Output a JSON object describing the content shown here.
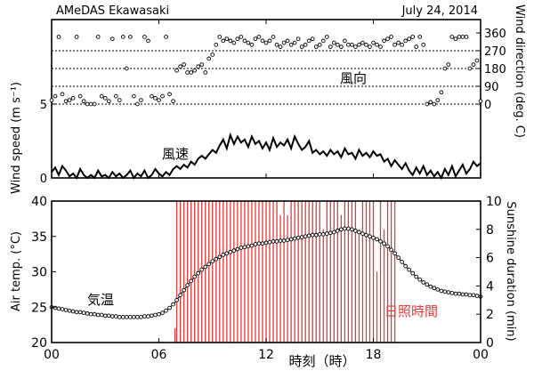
{
  "chart_data": [
    {
      "type": "scatter",
      "title": "AMeDAS Ekawasaki",
      "date": "July 24, 2014",
      "ylabel_right": "Wind direction (deg. C)",
      "y_ticks_right": [
        "360",
        "270",
        "180",
        "90",
        "0"
      ],
      "ylim": [
        0,
        360
      ],
      "grid_lines_at": [
        0,
        90,
        180,
        270
      ],
      "series_label": "風向",
      "series": [
        {
          "x": [
            0.0,
            0.2,
            0.4,
            0.6,
            0.8,
            1.0,
            1.2,
            1.4,
            1.6,
            1.8,
            2.0,
            2.2,
            2.4,
            2.6,
            2.8,
            3.0,
            3.2,
            3.4,
            3.6,
            3.8,
            4.0,
            4.2,
            4.4,
            4.6,
            4.8,
            5.0,
            5.2,
            5.4,
            5.6,
            5.8,
            6.0,
            6.2,
            6.4,
            6.6,
            6.8,
            7.0,
            7.2,
            7.4,
            7.6,
            7.8,
            8.0,
            8.2,
            8.4,
            8.6,
            8.8,
            9.0,
            9.2,
            9.4,
            9.6,
            9.8,
            10.0,
            10.2,
            10.4,
            10.6,
            10.8,
            11.0,
            11.2,
            11.4,
            11.6,
            11.8,
            12.0,
            12.2,
            12.4,
            12.6,
            12.8,
            13.0,
            13.2,
            13.4,
            13.6,
            13.8,
            14.0,
            14.2,
            14.4,
            14.6,
            14.8,
            15.0,
            15.2,
            15.4,
            15.6,
            15.8,
            16.0,
            16.2,
            16.4,
            16.6,
            16.8,
            17.0,
            17.2,
            17.4,
            17.6,
            17.8,
            18.0,
            18.2,
            18.4,
            18.6,
            18.8,
            19.0,
            19.2,
            19.4,
            19.6,
            19.8,
            20.0,
            20.2,
            20.4,
            20.6,
            20.8,
            21.0,
            21.2,
            21.4,
            21.6,
            21.8,
            22.0,
            22.2,
            22.4,
            22.6,
            22.8,
            23.0,
            23.2,
            23.4,
            23.6,
            23.8,
            24.0
          ],
          "y": [
            20,
            40,
            340,
            50,
            15,
            20,
            30,
            340,
            40,
            15,
            0,
            0,
            0,
            340,
            40,
            30,
            15,
            330,
            40,
            20,
            340,
            180,
            340,
            40,
            0,
            20,
            340,
            320,
            40,
            30,
            20,
            40,
            340,
            50,
            15,
            170,
            190,
            200,
            160,
            160,
            170,
            190,
            200,
            160,
            230,
            250,
            300,
            340,
            320,
            330,
            320,
            310,
            330,
            340,
            320,
            310,
            300,
            330,
            340,
            320,
            310,
            320,
            340,
            300,
            290,
            310,
            320,
            300,
            310,
            330,
            290,
            300,
            320,
            330,
            290,
            300,
            320,
            340,
            290,
            310,
            300,
            290,
            320,
            300,
            300,
            290,
            300,
            310,
            300,
            290,
            310,
            300,
            290,
            320,
            330,
            340,
            300,
            310,
            300,
            320,
            330,
            340,
            290,
            340,
            300,
            0,
            10,
            0,
            20,
            60,
            180,
            200,
            340,
            330,
            340,
            340,
            340,
            180,
            200,
            220,
            15
          ]
        }
      ]
    },
    {
      "type": "line",
      "ylabel": "Wind speed (m s⁻¹)",
      "y_ticks": [
        "5",
        "0"
      ],
      "ylim": [
        0,
        5
      ],
      "series_label": "風速",
      "series": [
        {
          "x": [
            0.0,
            0.2,
            0.4,
            0.6,
            0.8,
            1.0,
            1.2,
            1.4,
            1.6,
            1.8,
            2.0,
            2.2,
            2.4,
            2.6,
            2.8,
            3.0,
            3.2,
            3.4,
            3.6,
            3.8,
            4.0,
            4.2,
            4.4,
            4.6,
            4.8,
            5.0,
            5.2,
            5.4,
            5.6,
            5.8,
            6.0,
            6.2,
            6.4,
            6.6,
            6.8,
            7.0,
            7.2,
            7.4,
            7.6,
            7.8,
            8.0,
            8.2,
            8.4,
            8.6,
            8.8,
            9.0,
            9.2,
            9.4,
            9.6,
            9.8,
            10.0,
            10.2,
            10.4,
            10.6,
            10.8,
            11.0,
            11.2,
            11.4,
            11.6,
            11.8,
            12.0,
            12.2,
            12.4,
            12.6,
            12.8,
            13.0,
            13.2,
            13.4,
            13.6,
            13.8,
            14.0,
            14.2,
            14.4,
            14.6,
            14.8,
            15.0,
            15.2,
            15.4,
            15.6,
            15.8,
            16.0,
            16.2,
            16.4,
            16.6,
            16.8,
            17.0,
            17.2,
            17.4,
            17.6,
            17.8,
            18.0,
            18.2,
            18.4,
            18.6,
            18.8,
            19.0,
            19.2,
            19.4,
            19.6,
            19.8,
            20.0,
            20.2,
            20.4,
            20.6,
            20.8,
            21.0,
            21.2,
            21.4,
            21.6,
            21.8,
            22.0,
            22.2,
            22.4,
            22.6,
            22.8,
            23.0,
            23.2,
            23.4,
            23.6,
            23.8,
            24.0
          ],
          "y": [
            0.4,
            0.7,
            0.2,
            0.8,
            0.5,
            0.1,
            0.3,
            0.0,
            0.6,
            0.2,
            0.0,
            0.2,
            0.0,
            0.5,
            0.1,
            0.2,
            0.0,
            0.4,
            0.1,
            0.3,
            0.0,
            0.2,
            0.5,
            0.0,
            0.3,
            0.1,
            0.5,
            0.0,
            0.2,
            0.6,
            0.3,
            0.1,
            0.4,
            0.2,
            0.6,
            0.8,
            0.6,
            0.9,
            0.7,
            1.1,
            0.9,
            1.3,
            1.5,
            1.3,
            1.6,
            1.9,
            1.7,
            2.2,
            2.6,
            2.0,
            2.9,
            2.3,
            2.8,
            2.4,
            2.6,
            2.1,
            2.8,
            2.3,
            2.5,
            2.0,
            2.4,
            1.9,
            2.7,
            2.1,
            2.4,
            2.2,
            2.6,
            2.0,
            2.8,
            2.3,
            1.9,
            2.1,
            2.5,
            1.7,
            1.9,
            1.6,
            1.8,
            1.5,
            1.9,
            1.6,
            1.8,
            1.4,
            2.0,
            1.6,
            1.7,
            1.3,
            1.9,
            1.5,
            1.7,
            1.4,
            1.8,
            1.5,
            1.6,
            1.1,
            1.3,
            0.8,
            1.2,
            0.9,
            0.6,
            1.0,
            0.5,
            0.2,
            0.7,
            0.3,
            0.8,
            0.2,
            0.5,
            0.1,
            0.4,
            0.0,
            0.6,
            0.2,
            0.8,
            0.1,
            0.5,
            0.9,
            0.3,
            0.6,
            1.1,
            0.8,
            1.0
          ]
        }
      ]
    },
    {
      "type": "line",
      "xlabel": "時刻（時）",
      "x_ticks": [
        "00",
        "06",
        "12",
        "18",
        "00"
      ],
      "xlim": [
        0,
        24
      ],
      "ylabel": "Air temp. (°C)",
      "y_ticks": [
        "40",
        "35",
        "30",
        "25",
        "20"
      ],
      "ylim": [
        20,
        40
      ],
      "ylabel_right": "Sunshine duration (min)",
      "y_ticks_right": [
        "10",
        "8",
        "6",
        "4",
        "2",
        "0"
      ],
      "ylim_right": [
        0,
        10
      ],
      "series": [
        {
          "name": "気温",
          "color": "#000000",
          "x": [
            0.0,
            0.2,
            0.4,
            0.6,
            0.8,
            1.0,
            1.2,
            1.4,
            1.6,
            1.8,
            2.0,
            2.2,
            2.4,
            2.6,
            2.8,
            3.0,
            3.2,
            3.4,
            3.6,
            3.8,
            4.0,
            4.2,
            4.4,
            4.6,
            4.8,
            5.0,
            5.2,
            5.4,
            5.6,
            5.8,
            6.0,
            6.2,
            6.4,
            6.6,
            6.8,
            7.0,
            7.2,
            7.4,
            7.6,
            7.8,
            8.0,
            8.2,
            8.4,
            8.6,
            8.8,
            9.0,
            9.2,
            9.4,
            9.6,
            9.8,
            10.0,
            10.2,
            10.4,
            10.6,
            10.8,
            11.0,
            11.2,
            11.4,
            11.6,
            11.8,
            12.0,
            12.2,
            12.4,
            12.6,
            12.8,
            13.0,
            13.2,
            13.4,
            13.6,
            13.8,
            14.0,
            14.2,
            14.4,
            14.6,
            14.8,
            15.0,
            15.2,
            15.4,
            15.6,
            15.8,
            16.0,
            16.2,
            16.4,
            16.6,
            16.8,
            17.0,
            17.2,
            17.4,
            17.6,
            17.8,
            18.0,
            18.2,
            18.4,
            18.6,
            18.8,
            19.0,
            19.2,
            19.4,
            19.6,
            19.8,
            20.0,
            20.2,
            20.4,
            20.6,
            20.8,
            21.0,
            21.2,
            21.4,
            21.6,
            21.8,
            22.0,
            22.2,
            22.4,
            22.6,
            22.8,
            23.0,
            23.2,
            23.4,
            23.6,
            23.8,
            24.0
          ],
          "y": [
            25.0,
            24.9,
            24.8,
            24.7,
            24.6,
            24.5,
            24.4,
            24.3,
            24.3,
            24.2,
            24.1,
            24.0,
            24.0,
            23.9,
            23.9,
            23.8,
            23.8,
            23.7,
            23.7,
            23.6,
            23.6,
            23.6,
            23.6,
            23.6,
            23.6,
            23.6,
            23.7,
            23.7,
            23.8,
            23.9,
            24.0,
            24.2,
            24.5,
            24.9,
            25.4,
            26.0,
            26.7,
            27.4,
            28.1,
            28.7,
            29.3,
            29.8,
            30.3,
            30.7,
            31.1,
            31.5,
            31.8,
            32.1,
            32.4,
            32.6,
            32.8,
            33.0,
            33.2,
            33.4,
            33.5,
            33.6,
            33.7,
            33.9,
            34.0,
            34.0,
            34.1,
            34.2,
            34.3,
            34.3,
            34.4,
            34.4,
            34.5,
            34.6,
            34.7,
            34.8,
            34.9,
            35.0,
            35.1,
            35.2,
            35.2,
            35.3,
            35.3,
            35.4,
            35.5,
            35.6,
            35.8,
            36.0,
            36.1,
            36.1,
            36.0,
            35.8,
            35.6,
            35.4,
            35.2,
            35.0,
            34.8,
            34.6,
            34.3,
            34.0,
            33.6,
            33.1,
            32.6,
            32.0,
            31.4,
            30.8,
            30.3,
            29.8,
            29.3,
            28.9,
            28.5,
            28.2,
            27.9,
            27.7,
            27.5,
            27.3,
            27.2,
            27.1,
            27.0,
            26.9,
            26.9,
            26.8,
            26.8,
            26.7,
            26.7,
            26.6,
            26.5
          ]
        },
        {
          "name": "日照時間",
          "color": "#e03c3c",
          "type": "bar",
          "x": [
            6.9,
            7.0,
            7.2,
            7.4,
            7.6,
            7.8,
            8.0,
            8.2,
            8.4,
            8.6,
            8.8,
            9.0,
            9.2,
            9.4,
            9.6,
            9.8,
            10.0,
            10.2,
            10.4,
            10.6,
            10.8,
            11.0,
            11.2,
            11.4,
            11.6,
            11.8,
            12.0,
            12.2,
            12.4,
            12.6,
            12.8,
            13.0,
            13.2,
            13.4,
            13.6,
            13.8,
            14.0,
            14.2,
            14.4,
            14.6,
            14.8,
            15.0,
            15.2,
            15.4,
            15.6,
            15.8,
            16.0,
            16.2,
            16.4,
            16.6,
            16.8,
            17.0,
            17.2,
            17.4,
            17.6,
            17.8,
            18.0,
            18.2,
            18.4,
            18.6,
            18.8,
            19.0,
            19.2
          ],
          "y": [
            1,
            10,
            10,
            10,
            10,
            10,
            10,
            10,
            10,
            10,
            10,
            10,
            10,
            10,
            10,
            10,
            10,
            10,
            10,
            10,
            10,
            10,
            10,
            10,
            10,
            10,
            10,
            10,
            10,
            10,
            9,
            10,
            9,
            10,
            10,
            10,
            10,
            10,
            10,
            10,
            10,
            10,
            8,
            10,
            10,
            10,
            10,
            9,
            10,
            10,
            10,
            10,
            8,
            10,
            10,
            10,
            10,
            5,
            10,
            8,
            10,
            10,
            10
          ]
        }
      ]
    }
  ]
}
